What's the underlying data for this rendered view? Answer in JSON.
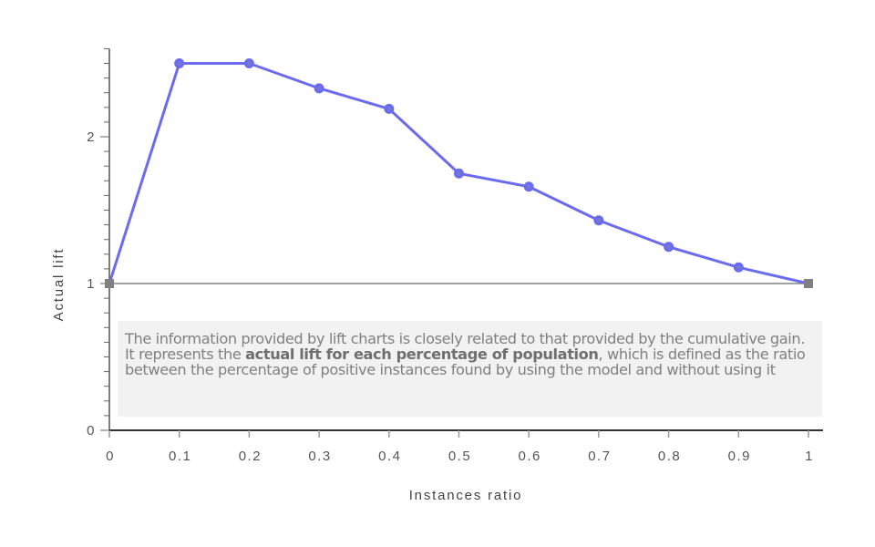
{
  "chart_data": {
    "type": "line",
    "title": "",
    "xlabel": "Instances ratio",
    "ylabel": "Actual lift",
    "x": [
      0,
      0.1,
      0.2,
      0.3,
      0.4,
      0.5,
      0.6,
      0.7,
      0.8,
      0.9,
      1.0
    ],
    "series": [
      {
        "name": "Actual lift",
        "color": "#6b6bf0",
        "values": [
          1.0,
          2.5,
          2.5,
          2.33,
          2.19,
          1.75,
          1.66,
          1.43,
          1.25,
          1.11,
          1.0
        ]
      },
      {
        "name": "Baseline",
        "color": "#808080",
        "values": [
          1.0,
          1.0
        ]
      }
    ],
    "x_ticks": [
      "0",
      "0.1",
      "0.2",
      "0.3",
      "0.4",
      "0.5",
      "0.6",
      "0.7",
      "0.8",
      "0.9",
      "1"
    ],
    "y_ticks": [
      "0",
      "1",
      "2"
    ],
    "xlim": [
      0,
      1
    ],
    "ylim": [
      0,
      2.6
    ],
    "grid": false,
    "legend": "none"
  },
  "info": {
    "text_before": "The information provided by lift charts is closely related to that provided by the cumulative gain. It represents the ",
    "text_bold": "actual lift for each percentage of population",
    "text_after": ", which is defined as the ratio between the percentage of positive instances found by using the model and without using it"
  }
}
